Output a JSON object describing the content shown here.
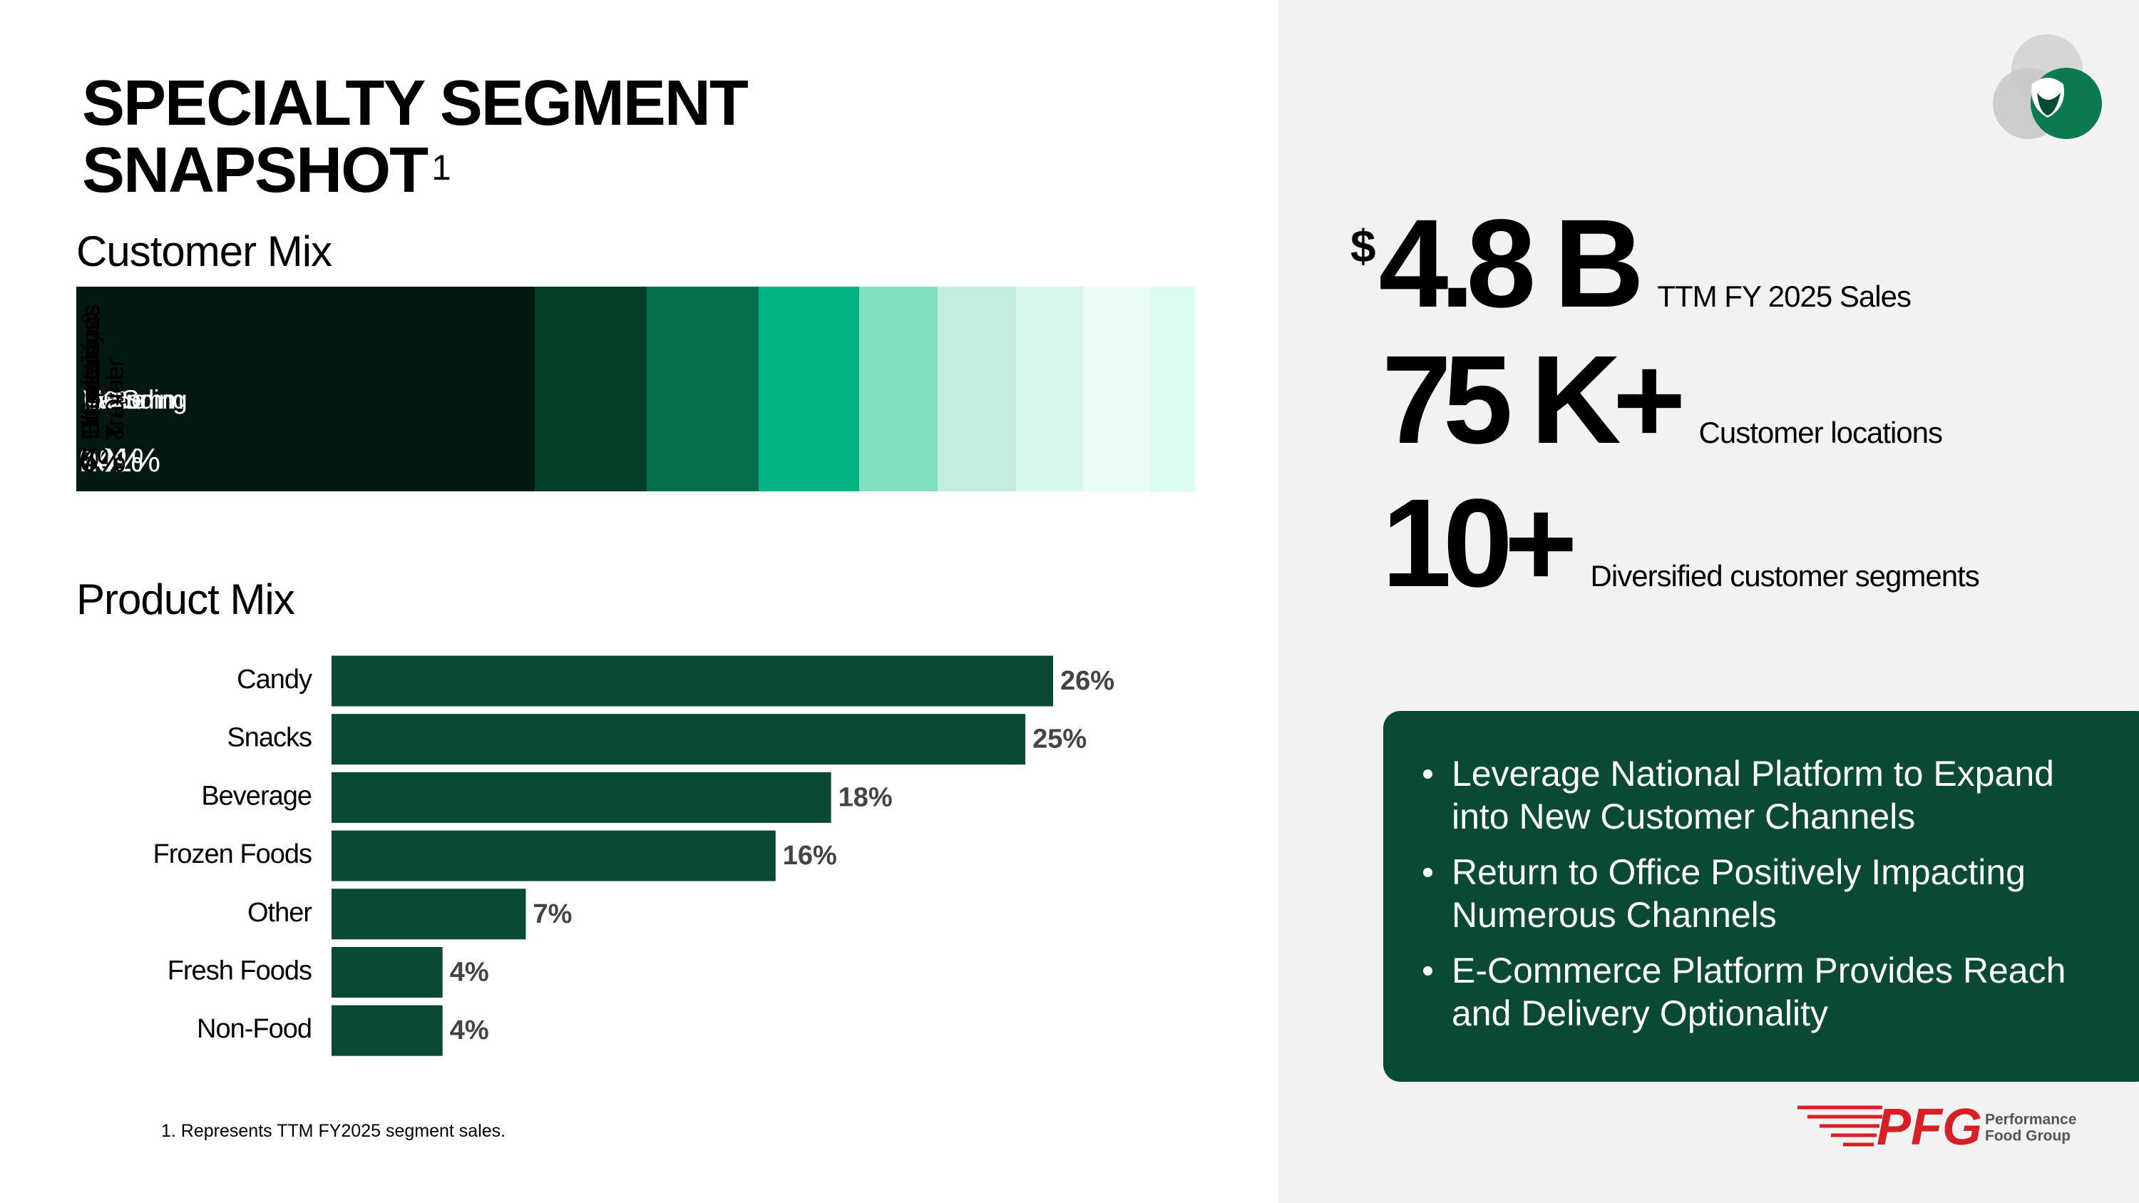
{
  "header": {
    "title": "SPECIALTY SEGMENT SNAPSHOT",
    "title_note": "1"
  },
  "chart_data": [
    {
      "type": "stacked_strip",
      "title": "Customer Mix",
      "categories": [
        "Vending",
        "E-Comm",
        "Value",
        "OCS",
        "Theater",
        "Concessions & Other",
        "Hospitality & Travel",
        "Office",
        "Corrections"
      ],
      "values": [
        41,
        10,
        10,
        9,
        7,
        7,
        6,
        6,
        4
      ],
      "value_labels": [
        "41%",
        "10%",
        "10%",
        "9%",
        "7%",
        "7%",
        "6%",
        "6%",
        "4%"
      ],
      "colors": [
        "#03190f",
        "#053f28",
        "#05704b",
        "#00b484",
        "#82dfc2",
        "#c3eedf",
        "#d9f8ec",
        "#e9fcf6",
        "#dcfbef"
      ]
    },
    {
      "type": "bar",
      "orientation": "horizontal",
      "title": "Product Mix",
      "categories": [
        "Candy",
        "Snacks",
        "Beverage",
        "Frozen Foods",
        "Other",
        "Fresh Foods",
        "Non-Food"
      ],
      "values": [
        26,
        25,
        18,
        16,
        7,
        4,
        4
      ],
      "value_labels": [
        "26%",
        "25%",
        "18%",
        "16%",
        "7%",
        "4%",
        "4%"
      ],
      "color": "#0b4a32"
    }
  ],
  "stats": [
    {
      "prefix": "$",
      "value": "4.8 B",
      "label": "TTM FY 2025 Sales"
    },
    {
      "value": "75 K+",
      "label": "Customer locations"
    },
    {
      "value": "10+",
      "label": "Diversified customer segments"
    }
  ],
  "bullets": [
    "Leverage National Platform to Expand into New Customer Channels",
    "Return to Office Positively Impacting Numerous Channels",
    "E-Commerce Platform Provides Reach and Delivery Optionality"
  ],
  "footnote": "1. Represents TTM FY2025 segment sales.",
  "logo": {
    "name": "PFG",
    "tagline": [
      "Performance",
      "Food Group"
    ]
  }
}
